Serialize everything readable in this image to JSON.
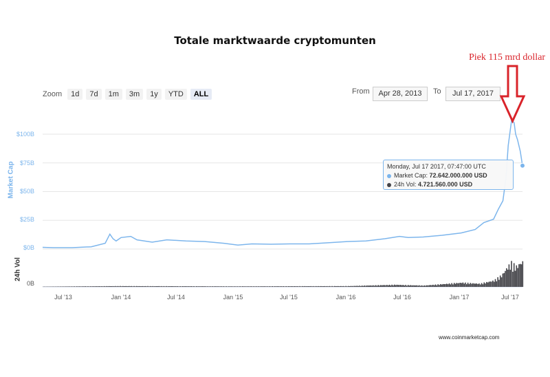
{
  "title": "Totale marktwaarde cryptomunten",
  "annotation": "Piek 115 mrd dollar",
  "zoom": {
    "label": "Zoom",
    "buttons": [
      "1d",
      "7d",
      "1m",
      "3m",
      "1y",
      "YTD",
      "ALL"
    ],
    "active": "ALL"
  },
  "range": {
    "from_label": "From",
    "from_value": "Apr 28, 2013",
    "to_label": "To",
    "to_value": "Jul 17, 2017"
  },
  "tooltip": {
    "date": "Monday, Jul 17 2017, 07:47:00 UTC",
    "mc_label": "Market Cap:",
    "mc_value": "72.642.000.000 USD",
    "vol_label": "24h Vol:",
    "vol_value": "4.721.560.000 USD"
  },
  "footer": "www.coinmarketcap.com",
  "colors": {
    "line": "#7cb5ec",
    "volume": "#434348",
    "annotation": "#d9232a"
  },
  "chart_data": {
    "type": "line",
    "ylabel": "Market Cap",
    "y_ticks": [
      "$0B",
      "$25B",
      "$50B",
      "$75B",
      "$100B"
    ],
    "ylim": [
      0,
      110
    ],
    "volume_ylabel": "24h Vol",
    "volume_tick": "0B",
    "x_ticks": [
      "Jul '13",
      "Jan '14",
      "Jul '14",
      "Jan '15",
      "Jul '15",
      "Jan '16",
      "Jul '16",
      "Jan '17",
      "Jul '17"
    ],
    "series": [
      {
        "name": "Market Cap",
        "x": [
          "2013-04-28",
          "2013-06-01",
          "2013-08-01",
          "2013-10-01",
          "2013-11-15",
          "2013-11-30",
          "2013-12-10",
          "2013-12-20",
          "2014-01-05",
          "2014-02-05",
          "2014-02-25",
          "2014-04-15",
          "2014-06-01",
          "2014-08-01",
          "2014-10-01",
          "2014-12-01",
          "2015-01-15",
          "2015-03-01",
          "2015-05-01",
          "2015-07-01",
          "2015-09-01",
          "2015-11-05",
          "2016-01-01",
          "2016-03-01",
          "2016-05-01",
          "2016-06-17",
          "2016-07-15",
          "2016-09-01",
          "2016-11-01",
          "2017-01-01",
          "2017-02-15",
          "2017-03-15",
          "2017-04-15",
          "2017-05-01",
          "2017-05-15",
          "2017-05-25",
          "2017-06-01",
          "2017-06-12",
          "2017-06-20",
          "2017-06-25",
          "2017-07-01",
          "2017-07-10",
          "2017-07-17"
        ],
        "y": [
          1.5,
          1.2,
          1.2,
          2,
          5,
          13,
          9,
          7,
          10,
          11,
          8,
          6,
          8,
          7,
          6.5,
          5,
          3.5,
          4.5,
          4.2,
          4.5,
          4.5,
          5.5,
          6.5,
          7,
          9,
          11,
          10,
          10.5,
          12,
          14,
          17,
          23,
          26,
          35,
          42,
          62,
          90,
          112,
          110,
          100,
          95,
          85,
          72.6
        ]
      }
    ],
    "volume": {
      "name": "24h Vol",
      "x": [
        "2013-04-28",
        "2014-01-01",
        "2015-01-01",
        "2016-01-01",
        "2016-06-01",
        "2016-09-01",
        "2017-01-01",
        "2017-03-01",
        "2017-04-15",
        "2017-05-10",
        "2017-05-25",
        "2017-06-10",
        "2017-06-25",
        "2017-07-10",
        "2017-07-17"
      ],
      "y": [
        0.05,
        0.15,
        0.1,
        0.15,
        0.4,
        0.25,
        0.8,
        0.6,
        1.2,
        2.2,
        3.5,
        4.5,
        3.8,
        4.6,
        4.7
      ],
      "ylim": [
        0,
        5
      ]
    }
  }
}
